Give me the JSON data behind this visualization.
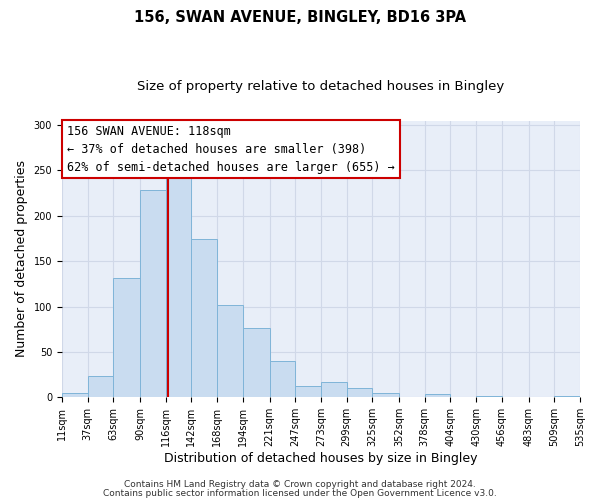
{
  "title": "156, SWAN AVENUE, BINGLEY, BD16 3PA",
  "subtitle": "Size of property relative to detached houses in Bingley",
  "xlabel": "Distribution of detached houses by size in Bingley",
  "ylabel": "Number of detached properties",
  "bar_left_edges": [
    11,
    37,
    63,
    90,
    116,
    142,
    168,
    194,
    221,
    247,
    273,
    299,
    325,
    352,
    378,
    404,
    430,
    456,
    483,
    509
  ],
  "bar_heights": [
    5,
    23,
    132,
    228,
    246,
    174,
    102,
    76,
    40,
    13,
    17,
    10,
    5,
    0,
    4,
    0,
    2,
    0,
    0,
    2
  ],
  "bar_widths": [
    26,
    26,
    27,
    26,
    26,
    26,
    26,
    27,
    26,
    26,
    26,
    26,
    27,
    26,
    26,
    26,
    26,
    27,
    26,
    26
  ],
  "bar_color": "#c9dcf0",
  "bar_edgecolor": "#7fb4d8",
  "vline_x": 118,
  "vline_color": "#cc0000",
  "annotation_line1": "156 SWAN AVENUE: 118sqm",
  "annotation_line2": "← 37% of detached houses are smaller (398)",
  "annotation_line3": "62% of semi-detached houses are larger (655) →",
  "xlim": [
    11,
    535
  ],
  "ylim": [
    0,
    305
  ],
  "yticks": [
    0,
    50,
    100,
    150,
    200,
    250,
    300
  ],
  "xtick_labels": [
    "11sqm",
    "37sqm",
    "63sqm",
    "90sqm",
    "116sqm",
    "142sqm",
    "168sqm",
    "194sqm",
    "221sqm",
    "247sqm",
    "273sqm",
    "299sqm",
    "325sqm",
    "352sqm",
    "378sqm",
    "404sqm",
    "430sqm",
    "456sqm",
    "483sqm",
    "509sqm",
    "535sqm"
  ],
  "xtick_positions": [
    11,
    37,
    63,
    90,
    116,
    142,
    168,
    194,
    221,
    247,
    273,
    299,
    325,
    352,
    378,
    404,
    430,
    456,
    483,
    509,
    535
  ],
  "grid_color": "#d0d8e8",
  "background_color": "#e8eef8",
  "footer_line1": "Contains HM Land Registry data © Crown copyright and database right 2024.",
  "footer_line2": "Contains public sector information licensed under the Open Government Licence v3.0.",
  "title_fontsize": 10.5,
  "subtitle_fontsize": 9.5,
  "axis_label_fontsize": 9,
  "tick_fontsize": 7,
  "annotation_fontsize": 8.5,
  "footer_fontsize": 6.5
}
